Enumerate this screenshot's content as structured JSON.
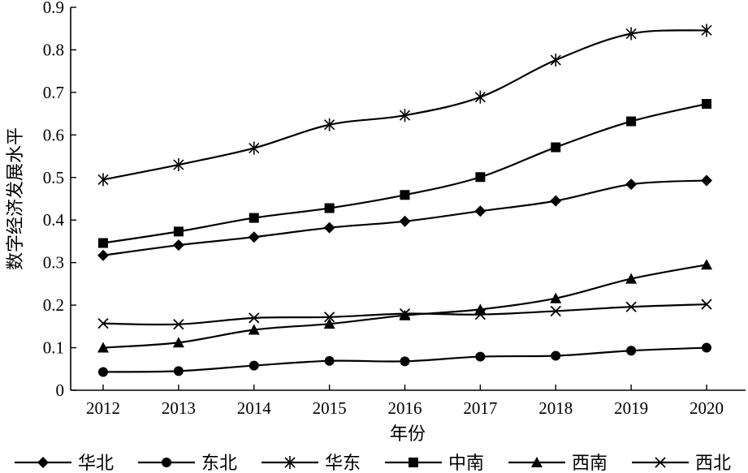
{
  "chart_data": {
    "type": "line",
    "xlabel": "年份",
    "ylabel": "数字经济发展水平",
    "x": [
      2012,
      2013,
      2014,
      2015,
      2016,
      2017,
      2018,
      2019,
      2020
    ],
    "x_tick_labels": [
      "2012",
      "2013",
      "2014",
      "2015",
      "2016",
      "2017",
      "2018",
      "2019",
      "2020"
    ],
    "ylim": [
      0,
      0.9
    ],
    "y_ticks": [
      0,
      0.1,
      0.2,
      0.3,
      0.4,
      0.5,
      0.6,
      0.7,
      0.8,
      0.9
    ],
    "y_tick_labels": [
      "0",
      "0.1",
      "0.2",
      "0.3",
      "0.4",
      "0.5",
      "0.6",
      "0.7",
      "0.8",
      "0.9"
    ],
    "grid": false,
    "legend_position": "bottom",
    "series": [
      {
        "name": "华北",
        "marker": "diamond",
        "values": [
          0.317,
          0.341,
          0.36,
          0.382,
          0.397,
          0.421,
          0.445,
          0.484,
          0.493
        ]
      },
      {
        "name": "东北",
        "marker": "circle",
        "values": [
          0.043,
          0.045,
          0.058,
          0.069,
          0.068,
          0.079,
          0.081,
          0.093,
          0.1
        ]
      },
      {
        "name": "华东",
        "marker": "asterisk",
        "values": [
          0.495,
          0.53,
          0.569,
          0.624,
          0.646,
          0.689,
          0.776,
          0.838,
          0.846
        ]
      },
      {
        "name": "中南",
        "marker": "square",
        "values": [
          0.346,
          0.373,
          0.405,
          0.428,
          0.459,
          0.501,
          0.571,
          0.632,
          0.673
        ]
      },
      {
        "name": "西南",
        "marker": "triangle",
        "values": [
          0.1,
          0.112,
          0.142,
          0.156,
          0.176,
          0.19,
          0.216,
          0.262,
          0.295
        ]
      },
      {
        "name": "西北",
        "marker": "x",
        "values": [
          0.157,
          0.155,
          0.17,
          0.172,
          0.18,
          0.178,
          0.186,
          0.196,
          0.202
        ]
      }
    ],
    "line_color": "#000000"
  }
}
